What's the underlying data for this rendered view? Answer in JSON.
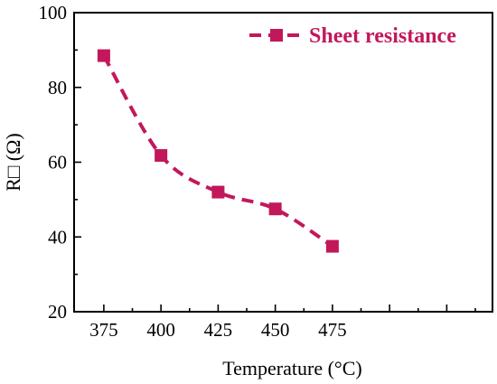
{
  "chart_data": {
    "type": "line",
    "title": "",
    "xlabel": "Temperature (°C)",
    "ylabel": "R□ (Ω)",
    "xlim": [
      362,
      545
    ],
    "ylim": [
      20,
      100
    ],
    "x_ticks": [
      375,
      400,
      425,
      450,
      475
    ],
    "y_ticks": [
      20,
      40,
      60,
      80,
      100
    ],
    "x_tick_labels": [
      "375",
      "400",
      "425",
      "450",
      "475"
    ],
    "y_tick_labels": [
      "20",
      "40",
      "60",
      "80",
      "100"
    ],
    "grid": false,
    "legend": {
      "position": "top-right"
    },
    "colors": {
      "series": "#c2185b"
    },
    "series": [
      {
        "name": "Sheet resistance",
        "marker": "square",
        "line_style": "dashed-smooth",
        "x": [
          375,
          400,
          425,
          450,
          475
        ],
        "y": [
          88.5,
          61.8,
          52.0,
          47.5,
          37.5
        ]
      }
    ]
  }
}
